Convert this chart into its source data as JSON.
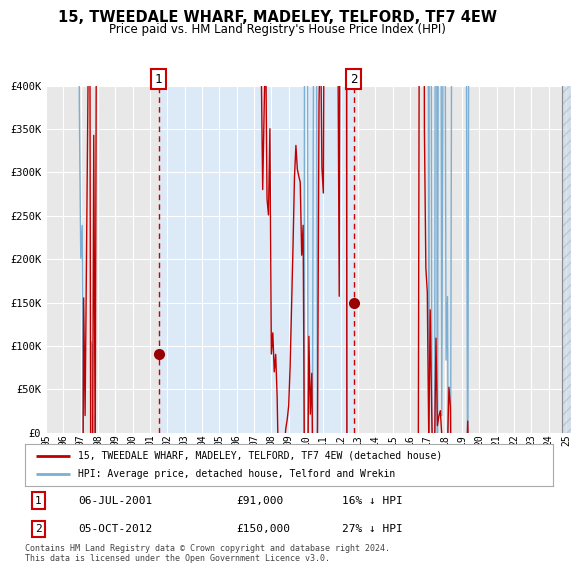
{
  "title": "15, TWEEDALE WHARF, MADELEY, TELFORD, TF7 4EW",
  "subtitle": "Price paid vs. HM Land Registry's House Price Index (HPI)",
  "legend_line1": "15, TWEEDALE WHARF, MADELEY, TELFORD, TF7 4EW (detached house)",
  "legend_line2": "HPI: Average price, detached house, Telford and Wrekin",
  "footnote": "Contains HM Land Registry data © Crown copyright and database right 2024.\nThis data is licensed under the Open Government Licence v3.0.",
  "sale1_date": "06-JUL-2001",
  "sale1_price": "£91,000",
  "sale1_hpi": "16% ↓ HPI",
  "sale2_date": "05-OCT-2012",
  "sale2_price": "£150,000",
  "sale2_hpi": "27% ↓ HPI",
  "sale1_x": 2001.5,
  "sale1_y": 91000,
  "sale2_x": 2012.75,
  "sale2_y": 150000,
  "ylim": [
    0,
    400000
  ],
  "xlim_start": 1995.0,
  "xlim_end": 2025.3,
  "bg_outside": "#e8e8e8",
  "bg_inside": "#dce9f7",
  "hpi_color": "#7bafd4",
  "price_color": "#c00000",
  "vline_color": "#cc0000",
  "grid_color": "#ffffff",
  "sale_dot_color": "#990000"
}
